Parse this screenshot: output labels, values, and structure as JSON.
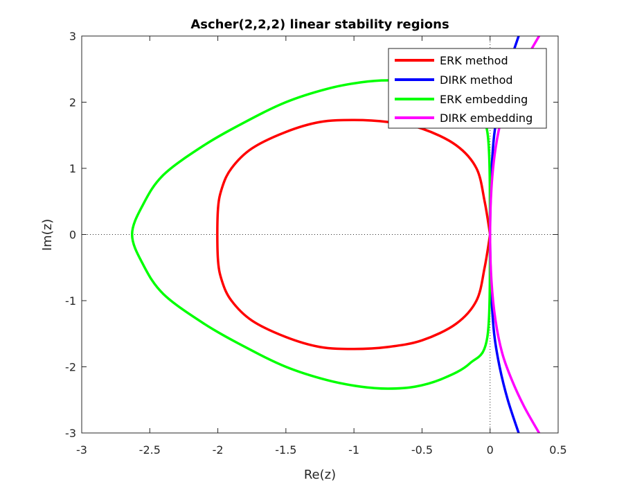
{
  "chart_data": {
    "type": "line",
    "title": "Ascher(2,2,2) linear stability regions",
    "xlabel": "Re(z)",
    "ylabel": "Im(z)",
    "xlim": [
      -3,
      0.5
    ],
    "ylim": [
      -3,
      3
    ],
    "xticks": [
      "-3",
      "-2.5",
      "-2",
      "-1.5",
      "-1",
      "-0.5",
      "0",
      "0.5"
    ],
    "yticks": [
      "3",
      "2",
      "1",
      "0",
      "-1",
      "-2",
      "-3"
    ],
    "grid": false,
    "reference_lines": [
      "y=0",
      "x=0"
    ],
    "legend_position": "top-right",
    "series": [
      {
        "name": "ERK method",
        "color": "#ff0000",
        "x": [
          0,
          -0.04,
          -0.1,
          -0.25,
          -0.5,
          -0.75,
          -1,
          -1.25,
          -1.5,
          -1.75,
          -1.9,
          -1.97,
          -2,
          -2,
          -1.97,
          -1.9,
          -1.75,
          -1.5,
          -1.25,
          -1,
          -0.75,
          -0.5,
          -0.25,
          -0.1,
          -0.04,
          0
        ],
        "y": [
          0,
          0.5,
          1.0,
          1.35,
          1.6,
          1.7,
          1.73,
          1.7,
          1.55,
          1.3,
          1.0,
          0.7,
          0.35,
          -0.35,
          -0.7,
          -1.0,
          -1.3,
          -1.55,
          -1.7,
          -1.73,
          -1.7,
          -1.6,
          -1.35,
          -1.0,
          -0.5,
          0
        ]
      },
      {
        "name": "DIRK method",
        "color": "#0000ff",
        "x": [
          0.21,
          0.13,
          0.07,
          0.03,
          0.01,
          0,
          0.01,
          0.03,
          0.07,
          0.13,
          0.21
        ],
        "y": [
          3.0,
          2.5,
          2.0,
          1.5,
          0.9,
          0,
          -0.9,
          -1.5,
          -2.0,
          -2.5,
          -3.0
        ]
      },
      {
        "name": "ERK embedding",
        "color": "#00ff00",
        "x": [
          0,
          -0.02,
          -0.15,
          -0.35,
          -0.55,
          -0.75,
          -0.95,
          -1.2,
          -1.5,
          -1.8,
          -2.1,
          -2.4,
          -2.55,
          -2.63,
          -2.55,
          -2.4,
          -2.1,
          -1.8,
          -1.5,
          -1.2,
          -0.95,
          -0.75,
          -0.55,
          -0.35,
          -0.15,
          -0.02,
          0
        ],
        "y": [
          0,
          -1.55,
          -1.95,
          -2.18,
          -2.3,
          -2.33,
          -2.3,
          -2.2,
          -2.0,
          -1.7,
          -1.35,
          -0.9,
          -0.45,
          0,
          0.45,
          0.9,
          1.35,
          1.7,
          2.0,
          2.2,
          2.3,
          2.33,
          2.3,
          2.18,
          1.95,
          1.55,
          0
        ]
      },
      {
        "name": "DIRK embedding",
        "color": "#ff00ff",
        "x": [
          0.36,
          0.25,
          0.16,
          0.09,
          0.04,
          0.01,
          0,
          0.01,
          0.04,
          0.09,
          0.16,
          0.25,
          0.36
        ],
        "y": [
          3.0,
          2.6,
          2.2,
          1.8,
          1.3,
          0.7,
          0,
          -0.7,
          -1.3,
          -1.8,
          -2.2,
          -2.6,
          -3.0
        ]
      }
    ]
  }
}
